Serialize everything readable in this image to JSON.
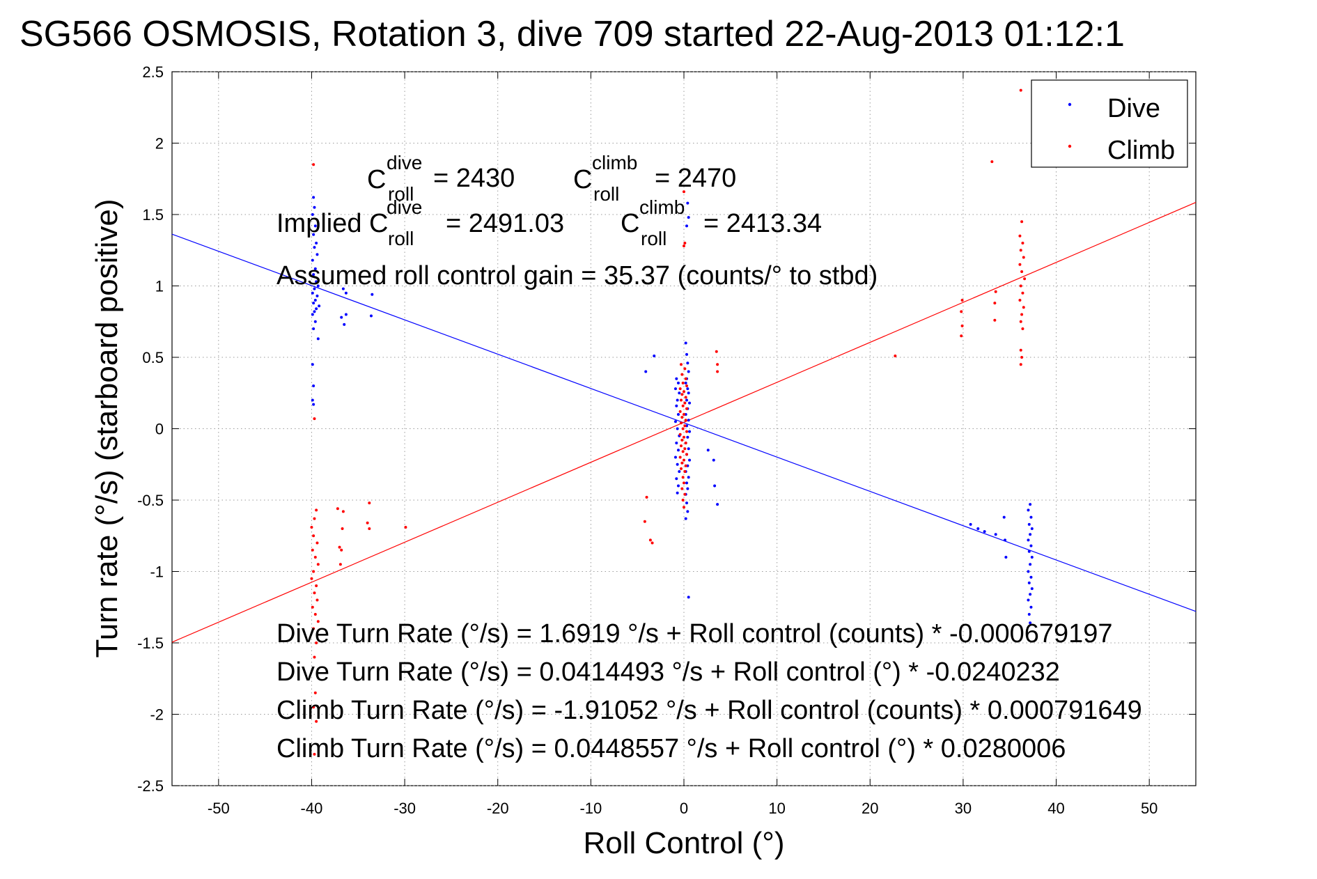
{
  "chart_data": {
    "type": "scatter",
    "title": "SG566 OSMOSIS, Rotation 3, dive 709 started 22-Aug-2013 01:12:1",
    "xlabel": "Roll Control (°)",
    "ylabel": "Turn rate (°/s)  (starboard positive)",
    "xlim": [
      -55,
      55
    ],
    "ylim": [
      -2.5,
      2.5
    ],
    "xticks": [
      -50,
      -40,
      -30,
      -20,
      -10,
      0,
      10,
      20,
      30,
      40,
      50
    ],
    "yticks": [
      -2.5,
      -2,
      -1.5,
      -1,
      -0.5,
      0,
      0.5,
      1,
      1.5,
      2,
      2.5
    ],
    "xtick_labels": [
      "-50",
      "-40",
      "-30",
      "-20",
      "-10",
      "0",
      "10",
      "20",
      "30",
      "40",
      "50"
    ],
    "ytick_labels": [
      "-2.5",
      "-2",
      "-1.5",
      "-1",
      "-0.5",
      "0",
      "0.5",
      "1",
      "1.5",
      "2",
      "2.5"
    ],
    "grid": true,
    "legend": {
      "position": "top-right",
      "entries": [
        {
          "label": "Dive",
          "color": "#0000ff"
        },
        {
          "label": "Climb",
          "color": "#ff0000"
        }
      ]
    },
    "series": [
      {
        "name": "Dive",
        "color": "#0000ff",
        "points": [
          [
            -39.8,
            1.62
          ],
          [
            -39.7,
            1.55
          ],
          [
            -39.9,
            1.5
          ],
          [
            -39.6,
            1.42
          ],
          [
            -39.8,
            1.36
          ],
          [
            -39.5,
            1.3
          ],
          [
            -39.7,
            1.27
          ],
          [
            -39.4,
            1.22
          ],
          [
            -39.9,
            1.18
          ],
          [
            -39.6,
            1.12
          ],
          [
            -39.8,
            1.08
          ],
          [
            -39.5,
            1.03
          ],
          [
            -39.3,
            1.0
          ],
          [
            -39.7,
            0.98
          ],
          [
            -39.9,
            0.95
          ],
          [
            -39.4,
            0.93
          ],
          [
            -39.6,
            0.9
          ],
          [
            -39.8,
            0.88
          ],
          [
            -39.2,
            0.86
          ],
          [
            -39.5,
            0.84
          ],
          [
            -39.7,
            0.82
          ],
          [
            -39.9,
            0.8
          ],
          [
            -39.6,
            0.75
          ],
          [
            -39.8,
            0.7
          ],
          [
            -39.3,
            0.63
          ],
          [
            -39.9,
            0.45
          ],
          [
            -39.8,
            0.3
          ],
          [
            -39.9,
            0.2
          ],
          [
            -39.8,
            0.17
          ],
          [
            -36.6,
            0.98
          ],
          [
            -36.3,
            0.95
          ],
          [
            -36.8,
            0.78
          ],
          [
            -36.3,
            0.8
          ],
          [
            -36.5,
            0.73
          ],
          [
            -33.5,
            0.94
          ],
          [
            -33.6,
            0.79
          ],
          [
            -4.1,
            0.4
          ],
          [
            -3.2,
            0.51
          ],
          [
            -0.8,
            0.35
          ],
          [
            -0.6,
            0.32
          ],
          [
            -0.9,
            0.28
          ],
          [
            -0.5,
            0.25
          ],
          [
            -0.7,
            0.2
          ],
          [
            -0.8,
            0.16
          ],
          [
            -0.6,
            0.1
          ],
          [
            -0.9,
            0.05
          ],
          [
            -0.7,
            0.0
          ],
          [
            -0.5,
            -0.05
          ],
          [
            -0.8,
            -0.1
          ],
          [
            -0.6,
            -0.15
          ],
          [
            -0.9,
            -0.2
          ],
          [
            -0.7,
            -0.25
          ],
          [
            -0.5,
            -0.3
          ],
          [
            -0.8,
            -0.35
          ],
          [
            -0.6,
            -0.4
          ],
          [
            -0.7,
            -0.45
          ],
          [
            0.2,
            0.6
          ],
          [
            0.3,
            0.52
          ],
          [
            0.4,
            0.46
          ],
          [
            0.5,
            0.4
          ],
          [
            0.3,
            0.35
          ],
          [
            0.2,
            0.32
          ],
          [
            0.4,
            0.28
          ],
          [
            0.5,
            0.25
          ],
          [
            0.3,
            0.2
          ],
          [
            0.6,
            0.18
          ],
          [
            0.4,
            0.14
          ],
          [
            0.2,
            0.1
          ],
          [
            0.5,
            0.06
          ],
          [
            0.3,
            0.02
          ],
          [
            0.6,
            -0.02
          ],
          [
            0.4,
            -0.06
          ],
          [
            0.2,
            -0.1
          ],
          [
            0.5,
            -0.14
          ],
          [
            0.3,
            -0.18
          ],
          [
            0.6,
            -0.22
          ],
          [
            0.4,
            -0.26
          ],
          [
            0.2,
            -0.3
          ],
          [
            0.5,
            -0.34
          ],
          [
            0.3,
            -0.38
          ],
          [
            0.4,
            -0.42
          ],
          [
            0.2,
            -0.46
          ],
          [
            0.3,
            -0.52
          ],
          [
            0.4,
            -0.58
          ],
          [
            0.2,
            -0.63
          ],
          [
            0.4,
            1.58
          ],
          [
            0.5,
            1.48
          ],
          [
            0.3,
            1.42
          ],
          [
            0.5,
            -1.18
          ],
          [
            2.6,
            -0.15
          ],
          [
            3.2,
            -0.22
          ],
          [
            3.3,
            -0.4
          ],
          [
            3.6,
            -0.53
          ],
          [
            30.8,
            -0.67
          ],
          [
            31.6,
            -0.7
          ],
          [
            32.3,
            -0.72
          ],
          [
            33.5,
            -0.74
          ],
          [
            34.4,
            -0.62
          ],
          [
            34.5,
            -0.78
          ],
          [
            34.6,
            -0.9
          ],
          [
            37.2,
            -0.53
          ],
          [
            37.0,
            -0.57
          ],
          [
            37.3,
            -0.62
          ],
          [
            37.1,
            -0.67
          ],
          [
            37.4,
            -0.7
          ],
          [
            37.2,
            -0.74
          ],
          [
            37.0,
            -0.78
          ],
          [
            37.3,
            -0.82
          ],
          [
            37.1,
            -0.86
          ],
          [
            37.4,
            -0.9
          ],
          [
            37.2,
            -0.95
          ],
          [
            37.0,
            -1.0
          ],
          [
            37.3,
            -1.04
          ],
          [
            37.1,
            -1.08
          ],
          [
            37.4,
            -1.12
          ],
          [
            37.2,
            -1.16
          ],
          [
            37.0,
            -1.2
          ],
          [
            37.3,
            -1.25
          ],
          [
            37.1,
            -1.3
          ],
          [
            37.2,
            -1.36
          ]
        ]
      },
      {
        "name": "Climb",
        "color": "#ff0000",
        "points": [
          [
            -39.8,
            1.85
          ],
          [
            -39.7,
            0.07
          ],
          [
            -39.5,
            -0.57
          ],
          [
            -39.7,
            -0.63
          ],
          [
            -40.0,
            -0.69
          ],
          [
            -39.8,
            -0.75
          ],
          [
            -39.4,
            -0.8
          ],
          [
            -39.9,
            -0.85
          ],
          [
            -39.6,
            -0.9
          ],
          [
            -39.3,
            -0.95
          ],
          [
            -39.8,
            -1.0
          ],
          [
            -40.0,
            -1.05
          ],
          [
            -39.5,
            -1.1
          ],
          [
            -39.7,
            -1.15
          ],
          [
            -39.4,
            -1.2
          ],
          [
            -39.9,
            -1.25
          ],
          [
            -39.6,
            -1.3
          ],
          [
            -39.3,
            -1.35
          ],
          [
            -39.8,
            -1.4
          ],
          [
            -39.5,
            -1.5
          ],
          [
            -39.7,
            -1.6
          ],
          [
            -39.6,
            -1.85
          ],
          [
            -39.8,
            -1.95
          ],
          [
            -39.5,
            -2.05
          ],
          [
            -39.7,
            -2.28
          ],
          [
            -37.2,
            -0.56
          ],
          [
            -36.6,
            -0.58
          ],
          [
            -37.0,
            -0.83
          ],
          [
            -36.8,
            -0.85
          ],
          [
            -36.9,
            -0.95
          ],
          [
            -36.7,
            -0.7
          ],
          [
            -34.0,
            -0.66
          ],
          [
            -33.8,
            -0.7
          ],
          [
            -33.8,
            -0.52
          ],
          [
            -29.9,
            -0.69
          ],
          [
            -4.0,
            -0.48
          ],
          [
            -4.2,
            -0.65
          ],
          [
            -3.6,
            -0.78
          ],
          [
            -3.4,
            -0.8
          ],
          [
            0.0,
            1.66
          ],
          [
            0.1,
            1.3
          ],
          [
            0.0,
            1.28
          ],
          [
            -0.3,
            0.45
          ],
          [
            0.1,
            0.42
          ],
          [
            -0.2,
            0.38
          ],
          [
            0.2,
            0.35
          ],
          [
            -0.1,
            0.32
          ],
          [
            0.3,
            0.3
          ],
          [
            -0.4,
            0.28
          ],
          [
            0.0,
            0.26
          ],
          [
            -0.2,
            0.24
          ],
          [
            0.2,
            0.22
          ],
          [
            -0.3,
            0.2
          ],
          [
            0.1,
            0.18
          ],
          [
            -0.1,
            0.16
          ],
          [
            0.3,
            0.14
          ],
          [
            -0.4,
            0.12
          ],
          [
            0.0,
            0.1
          ],
          [
            -0.2,
            0.08
          ],
          [
            0.2,
            0.06
          ],
          [
            -0.3,
            0.04
          ],
          [
            0.1,
            0.02
          ],
          [
            -0.1,
            0.0
          ],
          [
            0.3,
            -0.02
          ],
          [
            -0.4,
            -0.04
          ],
          [
            0.0,
            -0.06
          ],
          [
            -0.2,
            -0.08
          ],
          [
            0.2,
            -0.1
          ],
          [
            -0.3,
            -0.12
          ],
          [
            0.1,
            -0.14
          ],
          [
            -0.1,
            -0.16
          ],
          [
            0.3,
            -0.18
          ],
          [
            -0.4,
            -0.2
          ],
          [
            0.0,
            -0.22
          ],
          [
            -0.2,
            -0.24
          ],
          [
            0.2,
            -0.26
          ],
          [
            -0.3,
            -0.28
          ],
          [
            0.1,
            -0.3
          ],
          [
            -0.1,
            -0.34
          ],
          [
            0.0,
            -0.38
          ],
          [
            -0.2,
            -0.42
          ],
          [
            0.1,
            -0.46
          ],
          [
            -0.1,
            -0.5
          ],
          [
            0.0,
            -0.55
          ],
          [
            3.5,
            0.54
          ],
          [
            3.6,
            0.45
          ],
          [
            3.6,
            0.4
          ],
          [
            22.7,
            0.51
          ],
          [
            29.9,
            0.9
          ],
          [
            29.8,
            0.82
          ],
          [
            29.9,
            0.72
          ],
          [
            29.8,
            0.65
          ],
          [
            33.1,
            1.87
          ],
          [
            33.5,
            0.96
          ],
          [
            33.4,
            0.88
          ],
          [
            33.4,
            0.76
          ],
          [
            36.2,
            2.37
          ],
          [
            36.3,
            1.45
          ],
          [
            36.1,
            1.35
          ],
          [
            36.4,
            1.3
          ],
          [
            36.2,
            1.25
          ],
          [
            36.5,
            1.2
          ],
          [
            36.1,
            1.15
          ],
          [
            36.3,
            1.1
          ],
          [
            36.6,
            1.05
          ],
          [
            36.2,
            1.0
          ],
          [
            36.4,
            0.95
          ],
          [
            36.1,
            0.9
          ],
          [
            36.5,
            0.85
          ],
          [
            36.3,
            0.8
          ],
          [
            36.2,
            0.75
          ],
          [
            36.4,
            0.7
          ],
          [
            36.2,
            0.55
          ],
          [
            36.3,
            0.5
          ],
          [
            36.2,
            0.45
          ]
        ]
      }
    ],
    "fit_lines": [
      {
        "name": "Dive",
        "color": "#0000ff",
        "slope": -0.0240232,
        "intercept": 0.0414493
      },
      {
        "name": "Climb",
        "color": "#ff0000",
        "slope": 0.0280006,
        "intercept": 0.0448557
      }
    ],
    "annotations": {
      "c_roll_dive": {
        "c": "C",
        "sup": "dive",
        "sub": "roll",
        "value": "= 2430"
      },
      "c_roll_climb": {
        "c": "C",
        "sup": "climb",
        "sub": "roll",
        "value": "= 2470"
      },
      "implied_dive": {
        "prefix": "Implied C",
        "sup": "dive",
        "sub": "roll",
        "value": "= 2491.03"
      },
      "implied_climb": {
        "c": "C",
        "sup": "climb",
        "sub": "roll",
        "value": "= 2413.34"
      },
      "gain": "Assumed roll control gain = 35.37 (counts/° to stbd)",
      "equations": [
        "Dive Turn Rate (°/s) = 1.6919 °/s + Roll control (counts) * -0.000679197",
        "Dive Turn Rate (°/s) = 0.0414493 °/s + Roll control (°) * -0.0240232",
        "Climb Turn Rate (°/s) = -1.91052 °/s + Roll control (counts) * 0.000791649",
        "Climb Turn Rate (°/s) = 0.0448557 °/s + Roll control (°) * 0.0280006"
      ]
    }
  }
}
